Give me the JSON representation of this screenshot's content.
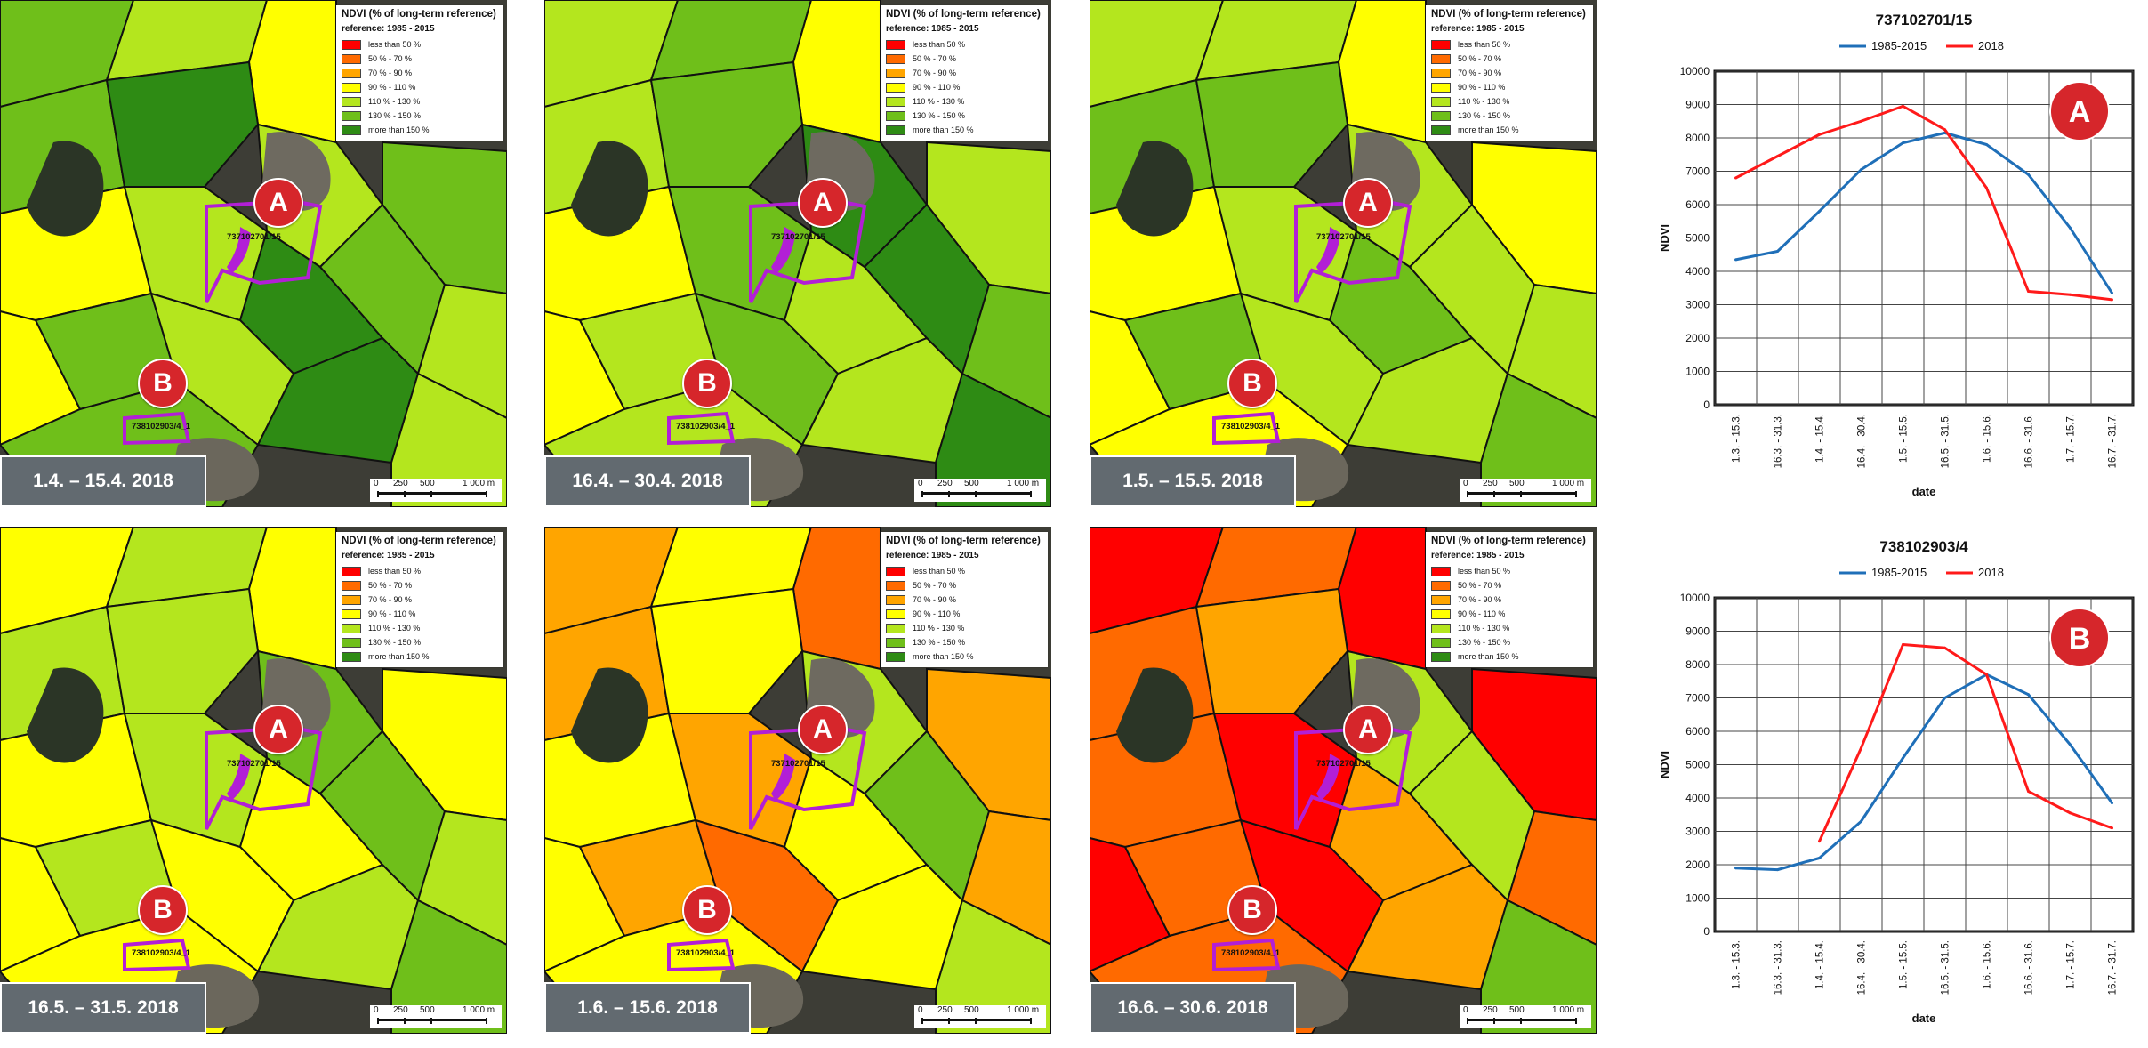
{
  "legend": {
    "title": "NDVI (% of long-term reference)",
    "reference": "reference: 1985 - 2015",
    "items": [
      {
        "label": "less than 50 %",
        "color": "#ff0000"
      },
      {
        "label": "50 % - 70 %",
        "color": "#ff6a00"
      },
      {
        "label": "70 % - 90 %",
        "color": "#ffa500"
      },
      {
        "label": "90 % - 110 %",
        "color": "#ffff00"
      },
      {
        "label": "110 % - 130 %",
        "color": "#b4e61e"
      },
      {
        "label": "130 % - 150 %",
        "color": "#6fbf1a"
      },
      {
        "label": "more than 150 %",
        "color": "#2e8b14"
      }
    ]
  },
  "scale_bar": {
    "labels": [
      "0",
      "250",
      "500",
      "1 000 m"
    ]
  },
  "markers": {
    "a": "A",
    "b": "B"
  },
  "parcels": {
    "a": "737102701/15",
    "b": "738102903/4_1"
  },
  "panels": [
    {
      "date_label": "1.4. – 15.4. 2018"
    },
    {
      "date_label": "16.4. – 30.4. 2018"
    },
    {
      "date_label": "1.5. – 15.5. 2018"
    },
    {
      "date_label": "16.5. – 31.5. 2018"
    },
    {
      "date_label": "1.6. – 15.6. 2018"
    },
    {
      "date_label": "16.6. – 30.6. 2018"
    }
  ],
  "chart_data": [
    {
      "type": "line",
      "title": "737102701/15",
      "marker": "A",
      "xlabel": "date",
      "ylabel": "NDVI",
      "ylim": [
        0,
        10000
      ],
      "yticks": [
        0,
        1000,
        2000,
        3000,
        4000,
        5000,
        6000,
        7000,
        8000,
        9000,
        10000
      ],
      "categories": [
        "1.3. - 15.3.",
        "16.3. - 31.3.",
        "1.4. - 15.4.",
        "16.4. - 30.4.",
        "1.5. - 15.5.",
        "16.5. - 31.5.",
        "1.6. - 15.6.",
        "16.6. - 31.6.",
        "1.7. - 15.7.",
        "16.7. - 31.7."
      ],
      "legend_position": "top",
      "grid": true,
      "series": [
        {
          "name": "1985-2015",
          "color": "#1f6fb8",
          "values": [
            4350,
            4600,
            5800,
            7050,
            7850,
            8150,
            7800,
            6900,
            5300,
            3350
          ]
        },
        {
          "name": "2018",
          "color": "#ff1a1a",
          "values": [
            6800,
            7450,
            8100,
            8500,
            8950,
            8250,
            6500,
            3400,
            3300,
            3150
          ]
        }
      ]
    },
    {
      "type": "line",
      "title": "738102903/4",
      "marker": "B",
      "xlabel": "date",
      "ylabel": "NDVI",
      "ylim": [
        0,
        10000
      ],
      "yticks": [
        0,
        1000,
        2000,
        3000,
        4000,
        5000,
        6000,
        7000,
        8000,
        9000,
        10000
      ],
      "categories": [
        "1.3. - 15.3.",
        "16.3. - 31.3.",
        "1.4. - 15.4.",
        "16.4. - 30.4.",
        "1.5. - 15.5.",
        "16.5. - 31.5.",
        "1.6. - 15.6.",
        "16.6. - 31.6.",
        "1.7. - 15.7.",
        "16.7. - 31.7."
      ],
      "legend_position": "top",
      "grid": true,
      "series": [
        {
          "name": "1985-2015",
          "color": "#1f6fb8",
          "values": [
            1900,
            1850,
            2200,
            3300,
            5200,
            7000,
            7700,
            7100,
            5600,
            3850
          ]
        },
        {
          "name": "2018",
          "color": "#ff1a1a",
          "values": [
            null,
            null,
            2700,
            5500,
            8600,
            8500,
            7700,
            4200,
            3550,
            3100
          ]
        }
      ]
    }
  ]
}
